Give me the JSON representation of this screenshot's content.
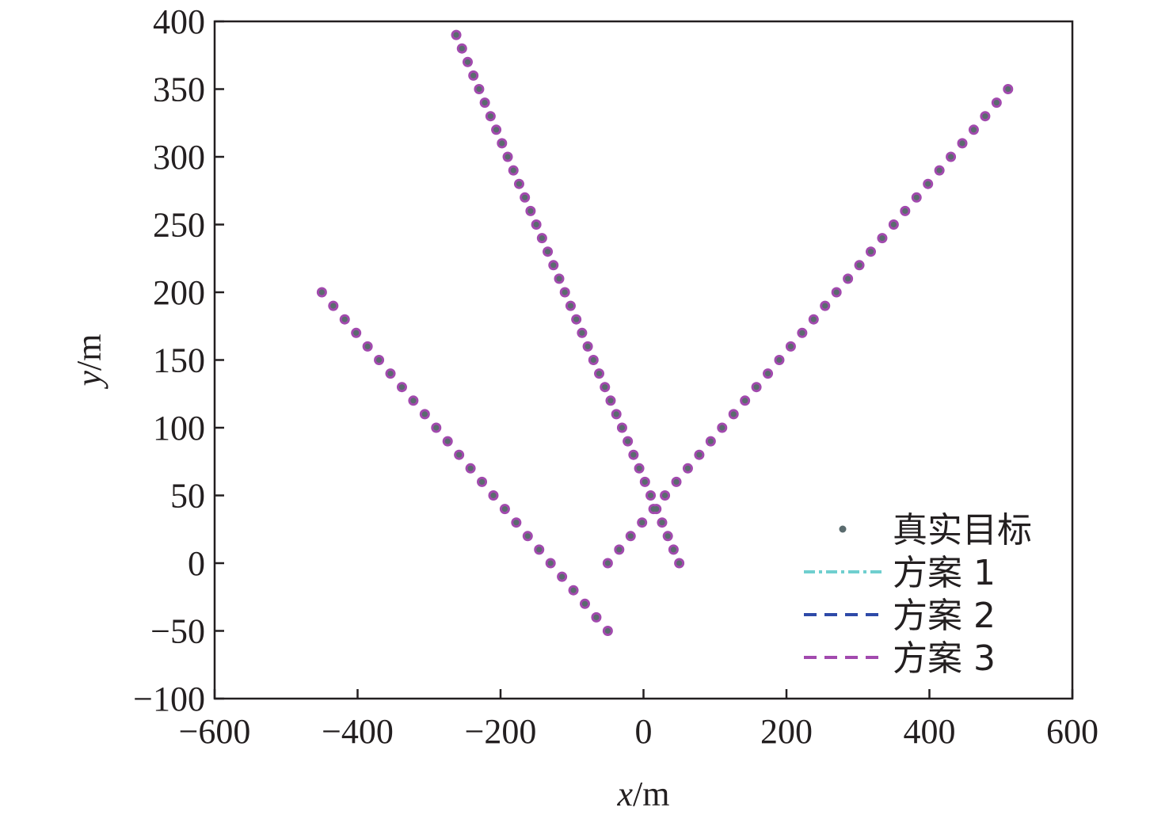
{
  "chart_data": {
    "type": "scatter",
    "xlabel": {
      "var": "x",
      "unit": "/m"
    },
    "ylabel": {
      "var": "y",
      "unit": "/m"
    },
    "xlim": [
      -600,
      600
    ],
    "ylim": [
      -100,
      400
    ],
    "xticks": [
      -600,
      -400,
      -200,
      0,
      200,
      400,
      600
    ],
    "yticks": [
      -100,
      -50,
      0,
      50,
      100,
      150,
      200,
      250,
      300,
      350,
      400
    ],
    "xtick_labels": [
      "−600",
      "−400",
      "−200",
      "0",
      "200",
      "400",
      "600"
    ],
    "ytick_labels": [
      "−100",
      "−50",
      "0",
      "50",
      "100",
      "150",
      "200",
      "250",
      "300",
      "350",
      "400"
    ],
    "grid": false,
    "legend_placement": "bottom-right",
    "colors": {
      "true_target": "#5a6b6e",
      "plan_1": "#6fcfcf",
      "plan_2": "#2e4aa8",
      "plan_3": "#a24aae",
      "axis": "#231f20"
    },
    "series": [
      {
        "name": "真实目标",
        "style": "dots",
        "color": "#5a6b6e",
        "tracks": [
          {
            "x": [
              -450,
              -50
            ],
            "y": [
              200,
              -50
            ],
            "points": 26
          },
          {
            "x": [
              -262,
              50
            ],
            "y": [
              390,
              0
            ],
            "points": 40
          },
          {
            "x": [
              -50,
              510
            ],
            "y": [
              0,
              350
            ],
            "points": 36
          }
        ]
      },
      {
        "name": "方案 1",
        "style": "dash-dot",
        "color": "#6fcfcf"
      },
      {
        "name": "方案 2",
        "style": "dashed",
        "color": "#2e4aa8"
      },
      {
        "name": "方案 3",
        "style": "dashed",
        "color": "#a24aae",
        "tracks": [
          {
            "x": [
              -450,
              -50
            ],
            "y": [
              200,
              -50
            ],
            "points": 26
          },
          {
            "x": [
              -262,
              50
            ],
            "y": [
              390,
              0
            ],
            "points": 40
          },
          {
            "x": [
              -50,
              510
            ],
            "y": [
              0,
              350
            ],
            "points": 36
          }
        ]
      }
    ]
  }
}
